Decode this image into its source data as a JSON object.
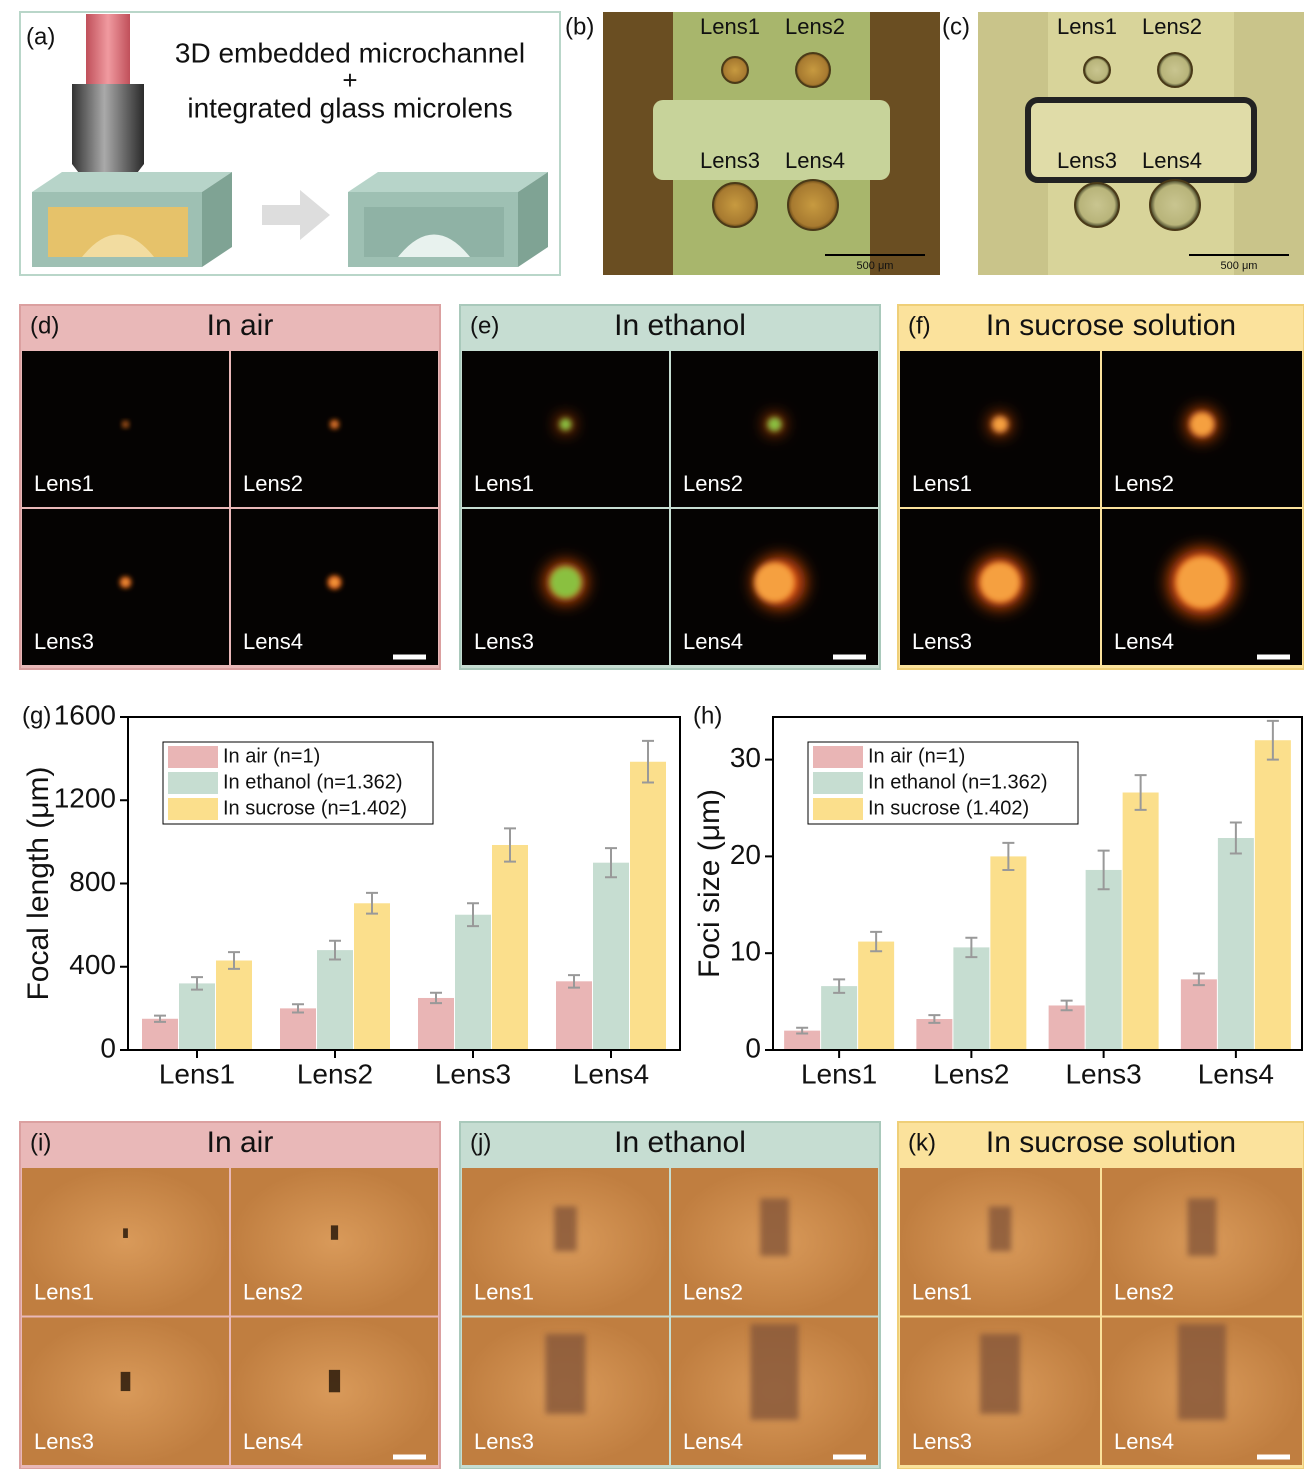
{
  "panel_a": {
    "label": "(a)",
    "lines": [
      "3D embedded microchannel",
      "+",
      "integrated glass microlens"
    ]
  },
  "panel_b": {
    "label": "(b)",
    "lenses": [
      "Lens1",
      "Lens2",
      "Lens3",
      "Lens4"
    ],
    "scale_bar": "500 μm"
  },
  "panel_c": {
    "label": "(c)",
    "lenses": [
      "Lens1",
      "Lens2",
      "Lens3",
      "Lens4"
    ],
    "scale_bar": "500 μm"
  },
  "focus_panels": [
    {
      "label": "(d)",
      "title": "In air",
      "lenses": [
        "Lens1",
        "Lens2",
        "Lens3",
        "Lens4"
      ]
    },
    {
      "label": "(e)",
      "title": "In ethanol",
      "lenses": [
        "Lens1",
        "Lens2",
        "Lens3",
        "Lens4"
      ]
    },
    {
      "label": "(f)",
      "title": "In sucrose solution",
      "lenses": [
        "Lens1",
        "Lens2",
        "Lens3",
        "Lens4"
      ]
    }
  ],
  "imaging_panels": [
    {
      "label": "(i)",
      "title": "In air",
      "lenses": [
        "Lens1",
        "Lens2",
        "Lens3",
        "Lens4"
      ]
    },
    {
      "label": "(j)",
      "title": "In ethanol",
      "lenses": [
        "Lens1",
        "Lens2",
        "Lens3",
        "Lens4"
      ]
    },
    {
      "label": "(k)",
      "title": "In sucrose solution",
      "lenses": [
        "Lens1",
        "Lens2",
        "Lens3",
        "Lens4"
      ]
    }
  ],
  "chart_data": [
    {
      "type": "bar",
      "panel_label": "(g)",
      "y_label": "Focal length (μm)",
      "categories": [
        "Lens1",
        "Lens2",
        "Lens3",
        "Lens4"
      ],
      "series": [
        {
          "name": "In air (n=1)",
          "color": "#e9b5b5",
          "values": [
            150,
            200,
            250,
            330
          ],
          "errors": [
            15,
            20,
            25,
            30
          ]
        },
        {
          "name": "In ethanol (n=1.362)",
          "color": "#c6ddd1",
          "values": [
            320,
            480,
            650,
            900
          ],
          "errors": [
            30,
            45,
            55,
            70
          ]
        },
        {
          "name": "In sucrose (n=1.402)",
          "color": "#fbdf8c",
          "values": [
            430,
            705,
            985,
            1385
          ],
          "errors": [
            40,
            50,
            80,
            100
          ]
        }
      ],
      "ylim": [
        0,
        1600
      ],
      "yticks": [
        0,
        400,
        800,
        1200,
        1600
      ]
    },
    {
      "type": "bar",
      "panel_label": "(h)",
      "y_label": "Foci size (μm)",
      "categories": [
        "Lens1",
        "Lens2",
        "Lens3",
        "Lens4"
      ],
      "series": [
        {
          "name": "In air (n=1)",
          "color": "#e9b5b5",
          "values": [
            2.0,
            3.2,
            4.6,
            7.3
          ],
          "errors": [
            0.3,
            0.4,
            0.5,
            0.6
          ]
        },
        {
          "name": "In ethanol (n=1.362)",
          "color": "#c6ddd1",
          "values": [
            6.6,
            10.6,
            18.6,
            21.9
          ],
          "errors": [
            0.7,
            1.0,
            2.0,
            1.6
          ]
        },
        {
          "name": "In sucrose (1.402)",
          "color": "#fbdf8c",
          "values": [
            11.2,
            20.0,
            26.6,
            32.0
          ],
          "errors": [
            1.0,
            1.4,
            1.8,
            2.0
          ]
        }
      ],
      "ylim": [
        0,
        34.4
      ],
      "yticks": [
        0,
        10,
        20,
        30
      ]
    }
  ]
}
